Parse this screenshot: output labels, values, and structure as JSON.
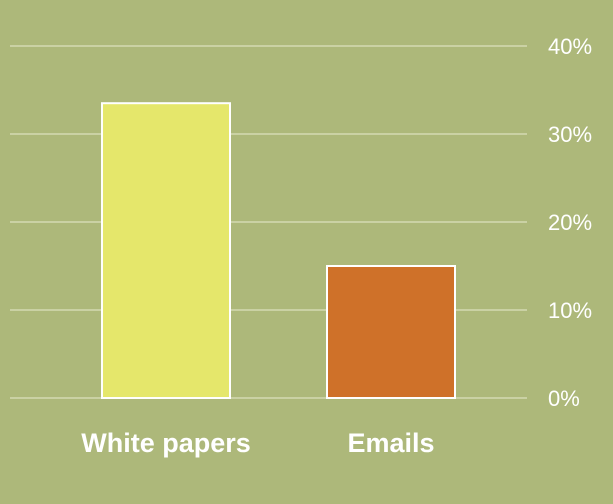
{
  "chart_data": {
    "type": "bar",
    "categories": [
      "White papers",
      "Emails"
    ],
    "values": [
      33.5,
      15
    ],
    "ylim": [
      0,
      40
    ],
    "yticks": [
      "0%",
      "10%",
      "20%",
      "30%",
      "40%"
    ],
    "ytick_values": [
      0,
      10,
      20,
      30,
      40
    ],
    "grid": true,
    "y_axis_position": "right",
    "bar_colors": [
      "#e5e76b",
      "#cf7129"
    ],
    "background": "#adb87a"
  }
}
